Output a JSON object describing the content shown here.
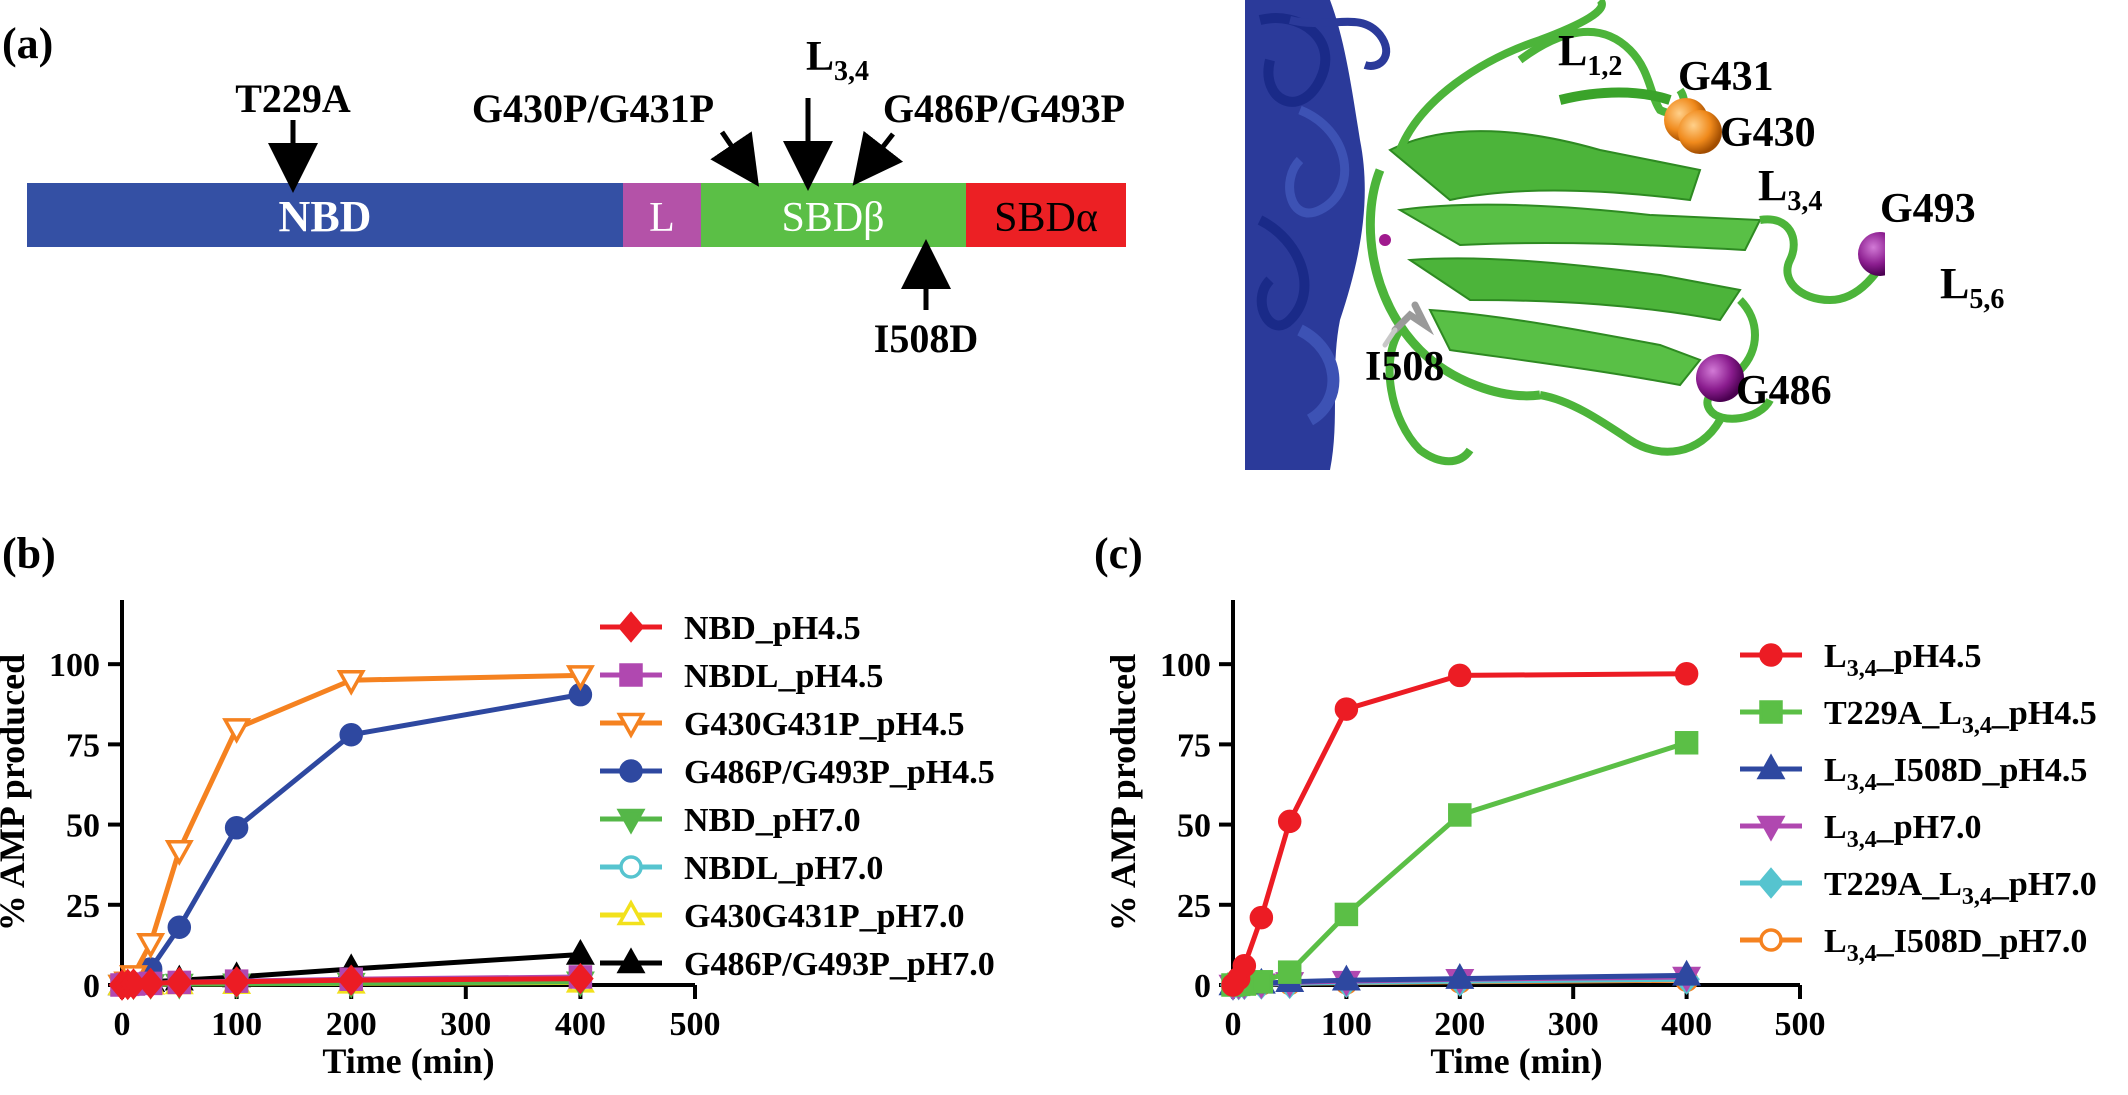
{
  "panel_a": {
    "label": "(a)",
    "domains": [
      {
        "name": "NBD",
        "color": "#3450a4"
      },
      {
        "name": "L",
        "color": "#b452a8"
      },
      {
        "name": "SBDβ",
        "color": "#5bbf46"
      },
      {
        "name": "SBDα",
        "color": "#ec2024"
      }
    ],
    "mutations": {
      "t229a": "T229A",
      "g430_431": "G430P/G431P",
      "l34_base": "L",
      "l34_sub": "3,4",
      "g486_493": "G486P/G493P",
      "i508d": "I508D"
    },
    "structure": {
      "l12_base": "L",
      "l12_sub": "1,2",
      "g431": "G431",
      "g430": "G430",
      "l34_base": "L",
      "l34_sub": "3,4",
      "g493": "G493",
      "l56_base": "L",
      "l56_sub": "5,6",
      "i508": "I508",
      "g486": "G486",
      "colors": {
        "nbd": "#2b3a9a",
        "sbd_beta": "#4cb43a",
        "orange": "#f08a1c",
        "purple": "#8b1d8f",
        "grey": "#9a9a9a"
      }
    }
  },
  "chart_data": [
    {
      "panel": "(b)",
      "type": "line",
      "xlabel": "Time (min)",
      "ylabel": "% AMP produced",
      "xlim": [
        0,
        500
      ],
      "ylim": [
        0,
        120
      ],
      "xticks": [
        0,
        100,
        200,
        300,
        400,
        500
      ],
      "yticks": [
        0,
        25,
        50,
        75,
        100
      ],
      "x": [
        0,
        5,
        10,
        25,
        50,
        100,
        200,
        400
      ],
      "legend_position": "right",
      "series": [
        {
          "name": "NBD_pH4.5",
          "color": "#ec1c24",
          "marker": "diamond",
          "fill": true,
          "values": [
            0,
            0.2,
            0.3,
            0.5,
            0.8,
            1.0,
            1.5,
            2.0
          ]
        },
        {
          "name": "NBDL_pH4.5",
          "color": "#b048b0",
          "marker": "square",
          "fill": true,
          "values": [
            0,
            0.2,
            0.3,
            0.5,
            0.8,
            1.2,
            1.8,
            2.5
          ]
        },
        {
          "name": "G430G431P_pH4.5",
          "color": "#f58220",
          "marker": "triangle-down",
          "fill": false,
          "values": [
            0,
            1,
            3,
            13,
            42,
            80,
            95,
            96.5
          ]
        },
        {
          "name": "G486P/G493P_pH4.5",
          "color": "#2e48a0",
          "marker": "circle",
          "fill": true,
          "values": [
            0,
            0.5,
            1.5,
            5,
            18,
            49,
            78,
            90.5
          ]
        },
        {
          "name": "NBD_pH7.0",
          "color": "#55b748",
          "marker": "triangle-down",
          "fill": true,
          "values": [
            0,
            0.1,
            0.1,
            0.2,
            0.3,
            0.4,
            0.6,
            1.0
          ]
        },
        {
          "name": "NBDL_pH7.0",
          "color": "#56c4cf",
          "marker": "circle",
          "fill": false,
          "values": [
            0,
            0.2,
            0.3,
            0.5,
            0.8,
            1.0,
            1.5,
            2.0
          ]
        },
        {
          "name": "G430G431P_pH7.0",
          "color": "#f2e11c",
          "marker": "triangle",
          "fill": false,
          "values": [
            0,
            0.1,
            0.1,
            0.2,
            0.3,
            0.4,
            0.5,
            0.8
          ]
        },
        {
          "name": "G486P/G493P_pH7.0",
          "color": "#000000",
          "marker": "triangle",
          "fill": true,
          "values": [
            0,
            0.3,
            0.5,
            1.0,
            1.5,
            2.5,
            5.0,
            9.5
          ]
        }
      ]
    },
    {
      "panel": "(c)",
      "type": "line",
      "xlabel": "Time (min)",
      "ylabel": "% AMP produced",
      "xlim": [
        0,
        500
      ],
      "ylim": [
        0,
        120
      ],
      "xticks": [
        0,
        100,
        200,
        300,
        400,
        500
      ],
      "yticks": [
        0,
        25,
        50,
        75,
        100
      ],
      "x": [
        0,
        5,
        10,
        25,
        50,
        100,
        200,
        400
      ],
      "legend_position": "right",
      "series": [
        {
          "name": "L_3,4_pH4.5",
          "label_base": "L",
          "label_sub": "3,4",
          "label_rest": "_pH4.5",
          "color": "#ec1c24",
          "marker": "circle",
          "fill": true,
          "values": [
            0,
            2,
            6,
            21,
            51,
            86,
            96.5,
            97
          ]
        },
        {
          "name": "T229A_L_3,4_pH4.5",
          "label_pre": "T229A_",
          "label_base": "L",
          "label_sub": "3,4",
          "label_rest": "_pH4.5",
          "color": "#5bbf46",
          "marker": "square",
          "fill": true,
          "values": [
            0,
            0.2,
            0.3,
            1,
            4,
            22,
            53,
            75.5
          ]
        },
        {
          "name": "L_3,4_I508D_pH4.5",
          "label_base": "L",
          "label_sub": "3,4",
          "label_rest": "_I508D_pH4.5",
          "color": "#2e48a0",
          "marker": "triangle",
          "fill": true,
          "values": [
            0,
            0.2,
            0.3,
            0.5,
            1,
            1.5,
            2,
            3
          ]
        },
        {
          "name": "L_3,4_pH7.0",
          "label_base": "L",
          "label_sub": "3,4",
          "label_rest": "_pH7.0",
          "color": "#b048b0",
          "marker": "triangle-down",
          "fill": true,
          "values": [
            0,
            0.2,
            0.3,
            0.4,
            0.8,
            1.2,
            1.8,
            2.5
          ]
        },
        {
          "name": "T229A_L_3,4_pH7.0",
          "label_pre": "T229A_",
          "label_base": "L",
          "label_sub": "3,4",
          "label_rest": "_pH7.0",
          "color": "#56c4cf",
          "marker": "diamond",
          "fill": true,
          "values": [
            0,
            0.1,
            0.2,
            0.3,
            0.5,
            0.8,
            1.2,
            1.8
          ]
        },
        {
          "name": "L_3,4_I508D_pH7.0",
          "label_base": "L",
          "label_sub": "3,4",
          "label_rest": "_I508D_pH7.0",
          "color": "#f58220",
          "marker": "circle",
          "fill": false,
          "values": [
            0,
            0.1,
            0.2,
            0.3,
            0.5,
            0.7,
            1.0,
            1.5
          ]
        }
      ]
    }
  ]
}
